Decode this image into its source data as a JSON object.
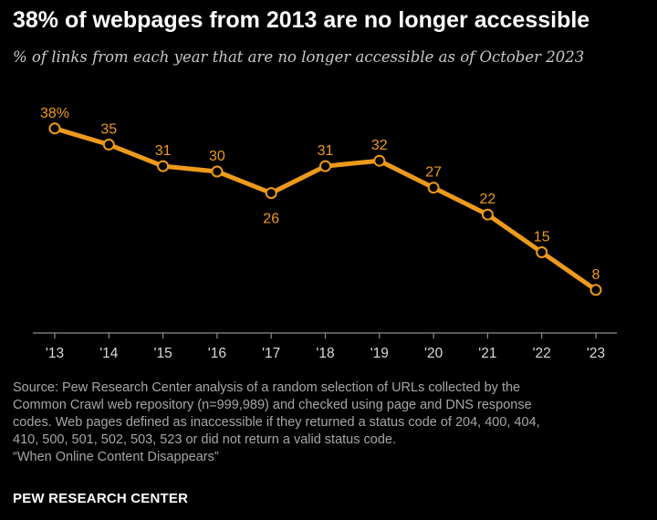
{
  "title": "38% of webpages from 2013 are no longer accessible",
  "subtitle": "% of links from each year that are no longer accessible as of October 2023",
  "source_lines": [
    "Source: Pew Research Center analysis of a random selection of URLs collected by the",
    "Common Crawl web repository (n=999,989) and checked using page and DNS response",
    "codes. Web pages defined as inaccessible if they returned a status code of 204, 400, 404,",
    "410, 500, 501, 502, 503, 523 or did not return a valid status code.",
    "“When Online Content Disappears”"
  ],
  "brand": "PEW RESEARCH CENTER",
  "colors": {
    "line": "#ed9a1c",
    "marker_fill": "#000000",
    "axis": "#8c8c8c",
    "tick_text": "#d9d9d9"
  },
  "chart_data": {
    "type": "line",
    "categories": [
      "'13",
      "'14",
      "'15",
      "'16",
      "'17",
      "'18",
      "'19",
      "'20",
      "'21",
      "'22",
      "'23"
    ],
    "values": [
      38,
      35,
      31,
      30,
      26,
      31,
      32,
      27,
      22,
      15,
      8
    ],
    "data_labels": [
      "38%",
      "35",
      "31",
      "30",
      "26",
      "31",
      "32",
      "27",
      "22",
      "15",
      "8"
    ],
    "ylim": [
      0,
      40
    ],
    "grid": false,
    "legend": "none"
  }
}
